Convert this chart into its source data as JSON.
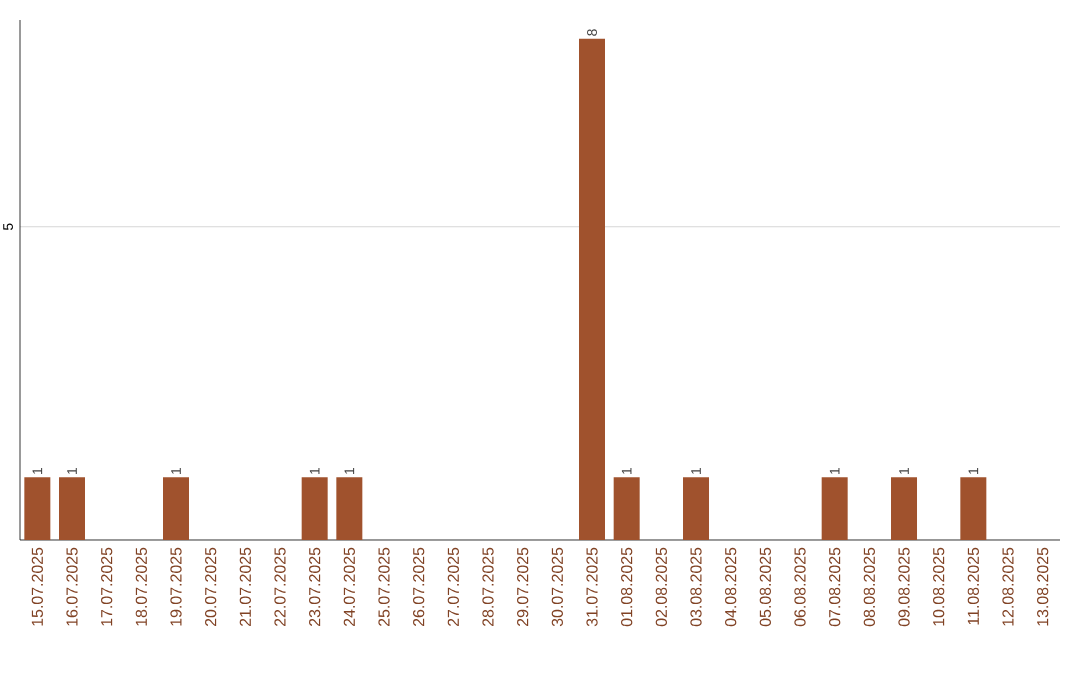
{
  "chart_data": {
    "type": "bar",
    "categories": [
      "15.07.2025",
      "16.07.2025",
      "17.07.2025",
      "18.07.2025",
      "19.07.2025",
      "20.07.2025",
      "21.07.2025",
      "22.07.2025",
      "23.07.2025",
      "24.07.2025",
      "25.07.2025",
      "26.07.2025",
      "27.07.2025",
      "28.07.2025",
      "29.07.2025",
      "30.07.2025",
      "31.07.2025",
      "01.08.2025",
      "02.08.2025",
      "03.08.2025",
      "04.08.2025",
      "05.08.2025",
      "06.08.2025",
      "07.08.2025",
      "08.08.2025",
      "09.08.2025",
      "10.08.2025",
      "11.08.2025",
      "12.08.2025",
      "13.08.2025"
    ],
    "values": [
      1,
      1,
      0,
      0,
      1,
      0,
      0,
      0,
      1,
      1,
      0,
      0,
      0,
      0,
      0,
      0,
      8,
      1,
      0,
      1,
      0,
      0,
      0,
      1,
      0,
      1,
      0,
      1,
      0,
      0
    ],
    "value_labels": [
      "1",
      "1",
      null,
      null,
      "1",
      null,
      null,
      null,
      "1",
      "1",
      null,
      null,
      null,
      null,
      null,
      null,
      "8",
      "1",
      null,
      "1",
      null,
      null,
      null,
      "1",
      null,
      "1",
      null,
      "1",
      null,
      null
    ],
    "color": "#a0522d",
    "ylim": [
      0,
      8.3
    ],
    "yticks": [
      5
    ],
    "grid": "y"
  }
}
